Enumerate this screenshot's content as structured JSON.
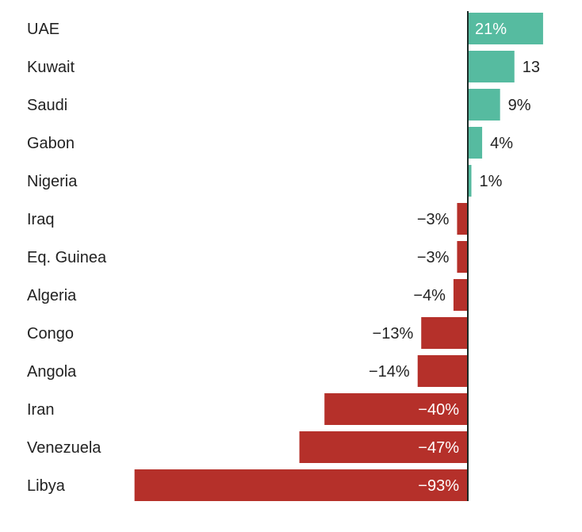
{
  "chart_data": {
    "type": "bar",
    "orientation": "horizontal",
    "categories": [
      "UAE",
      "Kuwait",
      "Saudi",
      "Gabon",
      "Nigeria",
      "Iraq",
      "Eq. Guinea",
      "Algeria",
      "Congo",
      "Angola",
      "Iran",
      "Venezuela",
      "Libya"
    ],
    "values": [
      21,
      13,
      9,
      4,
      1,
      -3,
      -3,
      -4,
      -13,
      -14,
      -40,
      -47,
      -93
    ],
    "labels": [
      "21%",
      "13",
      "9%",
      "4%",
      "1%",
      "−3%",
      "−3%",
      "−4%",
      "−13%",
      "−14%",
      "−40%",
      "−47%",
      "−93%"
    ],
    "xlim": [
      -93,
      21
    ],
    "colors": {
      "positive": "#56bba0",
      "negative": "#b5302a",
      "axis": "#1a2a26",
      "text": "#222222"
    }
  }
}
